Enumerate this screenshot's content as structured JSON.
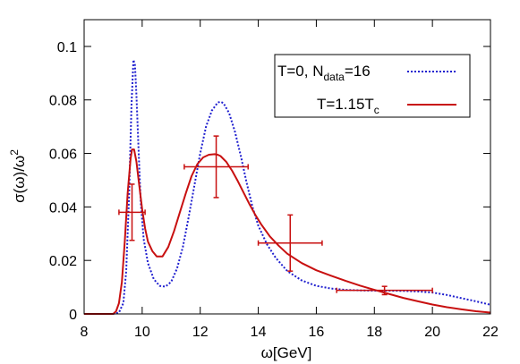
{
  "chart_data": {
    "type": "line",
    "title": "",
    "xlabel": "ω[GeV]",
    "ylabel": "σ(ω)/ω",
    "ylabel_sup": "2",
    "xlim": [
      8,
      22
    ],
    "ylim": [
      0,
      0.11
    ],
    "xticks": [
      8,
      10,
      12,
      14,
      16,
      18,
      20,
      22
    ],
    "xtick_labels": [
      "8",
      "10",
      "12",
      "14",
      "16",
      "18",
      "20",
      "22"
    ],
    "yticks": [
      0,
      0.02,
      0.04,
      0.06,
      0.08,
      0.1
    ],
    "ytick_labels": [
      "0",
      "0.02",
      "0.04",
      "0.06",
      "0.08",
      "0.1"
    ],
    "grid": false,
    "legend_position": "top-right",
    "series": [
      {
        "name": "T=0, N",
        "name_sub": "data",
        "name_suffix": "=16",
        "style": "dotted",
        "color": "#1f1fcf",
        "x": [
          8.0,
          9.0,
          9.2,
          9.35,
          9.45,
          9.55,
          9.63,
          9.7,
          9.75,
          9.8,
          9.88,
          9.95,
          10.05,
          10.2,
          10.4,
          10.6,
          10.8,
          11.0,
          11.2,
          11.4,
          11.6,
          11.8,
          12.0,
          12.2,
          12.4,
          12.6,
          12.7,
          12.8,
          13.0,
          13.2,
          13.4,
          13.6,
          13.8,
          14.0,
          14.3,
          14.6,
          15.0,
          15.5,
          16.0,
          16.5,
          17.0,
          17.5,
          18.0,
          18.5,
          19.0,
          19.5,
          20.0,
          20.5,
          21.0,
          21.5,
          22.0
        ],
        "y": [
          0.0,
          0.0,
          0.0005,
          0.004,
          0.016,
          0.045,
          0.078,
          0.095,
          0.093,
          0.082,
          0.06,
          0.042,
          0.028,
          0.019,
          0.013,
          0.0105,
          0.0102,
          0.012,
          0.017,
          0.025,
          0.036,
          0.048,
          0.06,
          0.07,
          0.076,
          0.079,
          0.0793,
          0.0788,
          0.075,
          0.068,
          0.059,
          0.049,
          0.04,
          0.033,
          0.026,
          0.021,
          0.016,
          0.0125,
          0.0105,
          0.0095,
          0.009,
          0.0088,
          0.0087,
          0.0087,
          0.0086,
          0.0084,
          0.008,
          0.0071,
          0.0059,
          0.0047,
          0.0034
        ]
      },
      {
        "name": "T=1.15T",
        "name_sub": "c",
        "name_suffix": "",
        "style": "solid",
        "color": "#c81010",
        "x": [
          8.0,
          9.0,
          9.1,
          9.2,
          9.3,
          9.4,
          9.5,
          9.6,
          9.65,
          9.72,
          9.8,
          9.9,
          10.0,
          10.1,
          10.2,
          10.35,
          10.5,
          10.7,
          10.9,
          11.1,
          11.3,
          11.5,
          11.7,
          11.9,
          12.1,
          12.3,
          12.5,
          12.6,
          12.7,
          12.9,
          13.1,
          13.3,
          13.5,
          13.7,
          13.9,
          14.1,
          14.4,
          14.7,
          15.0,
          15.5,
          16.0,
          16.5,
          17.0,
          17.5,
          18.0,
          18.5,
          19.0,
          19.5,
          20.0,
          20.5,
          21.0,
          21.5,
          22.0
        ],
        "y": [
          0.0,
          0.0,
          0.001,
          0.004,
          0.012,
          0.027,
          0.045,
          0.058,
          0.0615,
          0.0615,
          0.057,
          0.048,
          0.039,
          0.032,
          0.027,
          0.0235,
          0.0215,
          0.0215,
          0.025,
          0.031,
          0.038,
          0.045,
          0.0515,
          0.056,
          0.0585,
          0.0595,
          0.0597,
          0.0595,
          0.059,
          0.0568,
          0.0535,
          0.0495,
          0.0452,
          0.041,
          0.037,
          0.0335,
          0.029,
          0.0255,
          0.0225,
          0.019,
          0.0163,
          0.0143,
          0.0124,
          0.0106,
          0.009,
          0.0075,
          0.006,
          0.0047,
          0.0035,
          0.0025,
          0.0017,
          0.001,
          0.0005
        ]
      }
    ],
    "error_bars": {
      "color": "#c81010",
      "points": [
        {
          "x": 9.65,
          "y": 0.038,
          "xlow": 9.2,
          "xhigh": 10.1,
          "ylow": 0.0275,
          "yhigh": 0.0485
        },
        {
          "x": 12.55,
          "y": 0.055,
          "xlow": 11.45,
          "xhigh": 13.65,
          "ylow": 0.0435,
          "yhigh": 0.0665
        },
        {
          "x": 15.1,
          "y": 0.0265,
          "xlow": 14.0,
          "xhigh": 16.2,
          "ylow": 0.016,
          "yhigh": 0.037
        },
        {
          "x": 18.35,
          "y": 0.0088,
          "xlow": 16.7,
          "xhigh": 20.0,
          "ylow": 0.0072,
          "yhigh": 0.0103
        }
      ]
    }
  }
}
